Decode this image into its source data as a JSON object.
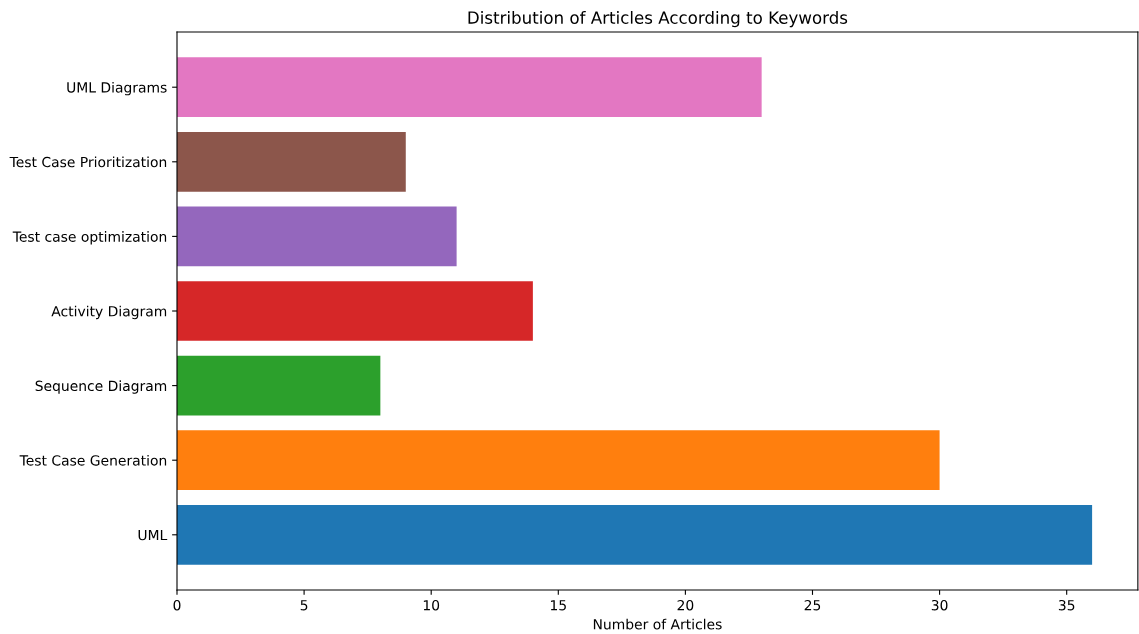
{
  "chart_data": {
    "type": "bar",
    "orientation": "horizontal",
    "title": "Distribution of Articles According to Keywords",
    "xlabel": "Number of Articles",
    "categories": [
      "UML Diagrams",
      "Test Case Prioritization",
      "Test case optimization",
      "Activity Diagram",
      "Sequence Diagram",
      "Test Case Generation",
      "UML"
    ],
    "values": [
      23,
      9,
      11,
      14,
      8,
      30,
      36
    ],
    "colors": [
      "#e377c2",
      "#8c564b",
      "#9467bd",
      "#d62728",
      "#2ca02c",
      "#ff7f0e",
      "#1f77b4"
    ],
    "xlim": [
      0,
      37.8
    ],
    "xticks": [
      0,
      5,
      10,
      15,
      20,
      25,
      30,
      35
    ],
    "grid": false,
    "legend": false
  }
}
